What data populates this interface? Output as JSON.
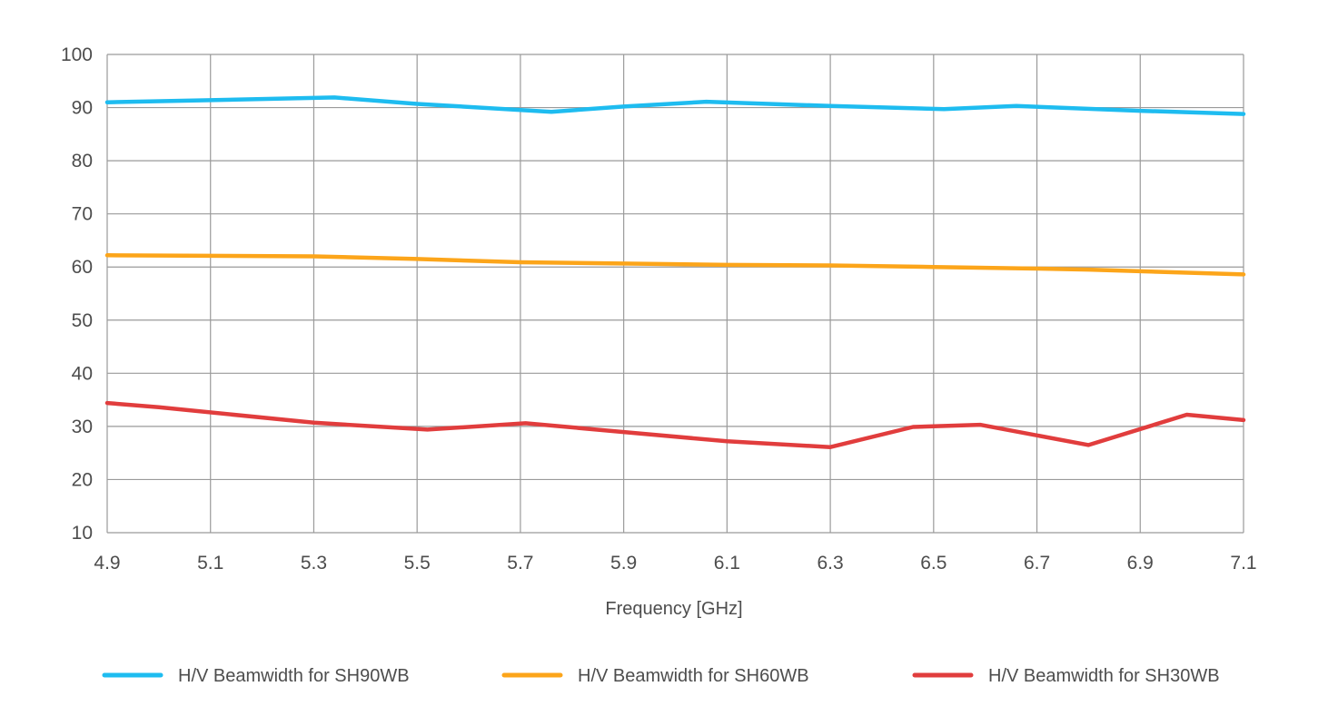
{
  "chart_data": {
    "type": "line",
    "title": "",
    "xlabel": "Frequency [GHz]",
    "ylabel": "",
    "xlim": [
      4.9,
      7.1
    ],
    "ylim": [
      10,
      100
    ],
    "grid": true,
    "legend_position": "bottom",
    "x_ticks": [
      "4.9",
      "5.1",
      "5.3",
      "5.5",
      "5.7",
      "5.9",
      "6.1",
      "6.3",
      "6.5",
      "6.7",
      "6.9",
      "7.1"
    ],
    "y_ticks": [
      "10",
      "20",
      "30",
      "40",
      "50",
      "60",
      "70",
      "80",
      "90",
      "100"
    ],
    "series": [
      {
        "name": "H/V Beamwidth for SH90WB",
        "color": "#1ebcf0",
        "points": [
          [
            4.9,
            91.0
          ],
          [
            5.1,
            91.4
          ],
          [
            5.34,
            91.9
          ],
          [
            5.5,
            90.7
          ],
          [
            5.76,
            89.2
          ],
          [
            5.9,
            90.2
          ],
          [
            6.06,
            91.1
          ],
          [
            6.3,
            90.3
          ],
          [
            6.52,
            89.7
          ],
          [
            6.66,
            90.3
          ],
          [
            6.9,
            89.4
          ],
          [
            7.1,
            88.8
          ]
        ]
      },
      {
        "name": "H/V Beamwidth for SH60WB",
        "color": "#fca51a",
        "points": [
          [
            4.9,
            62.2
          ],
          [
            5.3,
            62.0
          ],
          [
            5.5,
            61.5
          ],
          [
            5.7,
            60.9
          ],
          [
            6.1,
            60.4
          ],
          [
            6.3,
            60.3
          ],
          [
            6.5,
            60.0
          ],
          [
            6.7,
            59.7
          ],
          [
            6.8,
            59.5
          ],
          [
            7.1,
            58.6
          ]
        ]
      },
      {
        "name": "H/V Beamwidth for SH30WB",
        "color": "#e13d3d",
        "points": [
          [
            4.9,
            34.4
          ],
          [
            5.0,
            33.6
          ],
          [
            5.3,
            30.7
          ],
          [
            5.52,
            29.4
          ],
          [
            5.71,
            30.6
          ],
          [
            6.1,
            27.2
          ],
          [
            6.3,
            26.1
          ],
          [
            6.46,
            29.9
          ],
          [
            6.59,
            30.3
          ],
          [
            6.8,
            26.5
          ],
          [
            6.99,
            32.2
          ],
          [
            7.1,
            31.2
          ]
        ]
      }
    ]
  }
}
